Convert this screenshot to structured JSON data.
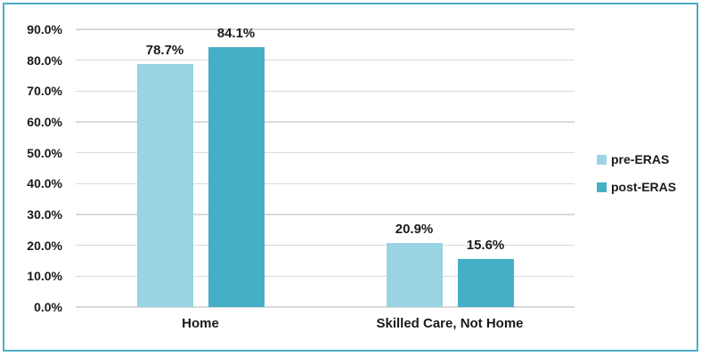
{
  "chart_data": {
    "type": "bar",
    "title": "",
    "xlabel": "",
    "ylabel": "",
    "categories": [
      "Home",
      "Skilled Care, Not Home"
    ],
    "series": [
      {
        "name": "pre-ERAS",
        "color": "#9AD3E2",
        "values": [
          78.7,
          20.9
        ],
        "labels": [
          "78.7%",
          "20.9%"
        ]
      },
      {
        "name": "post-ERAS",
        "color": "#45AFC5",
        "values": [
          84.1,
          15.6
        ],
        "labels": [
          "84.1%",
          "15.6%"
        ]
      }
    ],
    "ylim": [
      0,
      90
    ],
    "ytick_step": 10,
    "ytick_labels": [
      "0.0%",
      "10.0%",
      "20.0%",
      "30.0%",
      "40.0%",
      "50.0%",
      "60.0%",
      "70.0%",
      "80.0%",
      "90.0%"
    ],
    "grid": true,
    "legend_position": "right"
  },
  "colors": {
    "frame_border": "#4BACC6",
    "gridline": "#D9D9D9",
    "text": "#1A1A1A",
    "background": "#FFFFFF"
  }
}
